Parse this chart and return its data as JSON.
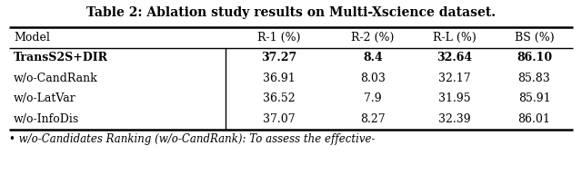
{
  "title": "Table 2: Ablation study results on Multi-Xscience dataset.",
  "columns": [
    "Model",
    "R-1 (%)",
    "R-2 (%)",
    "R-L (%)",
    "BS (%)"
  ],
  "rows": [
    [
      "TransS2S+DIR",
      "37.27",
      "8.4",
      "32.64",
      "86.10"
    ],
    [
      "w/o-CandRank",
      "36.91",
      "8.03",
      "32.17",
      "85.83"
    ],
    [
      "w/o-LatVar",
      "36.52",
      "7.9",
      "31.95",
      "85.91"
    ],
    [
      "w/o-InfoDis",
      "37.07",
      "8.27",
      "32.39",
      "86.01"
    ]
  ],
  "bold_row": 0,
  "footer_text": "• w/o-Candidates Ranking (w/o-CandRank): To assess the effective-",
  "fig_width": 6.4,
  "fig_height": 1.93,
  "dpi": 100,
  "font_size": 9,
  "title_font_size": 10
}
